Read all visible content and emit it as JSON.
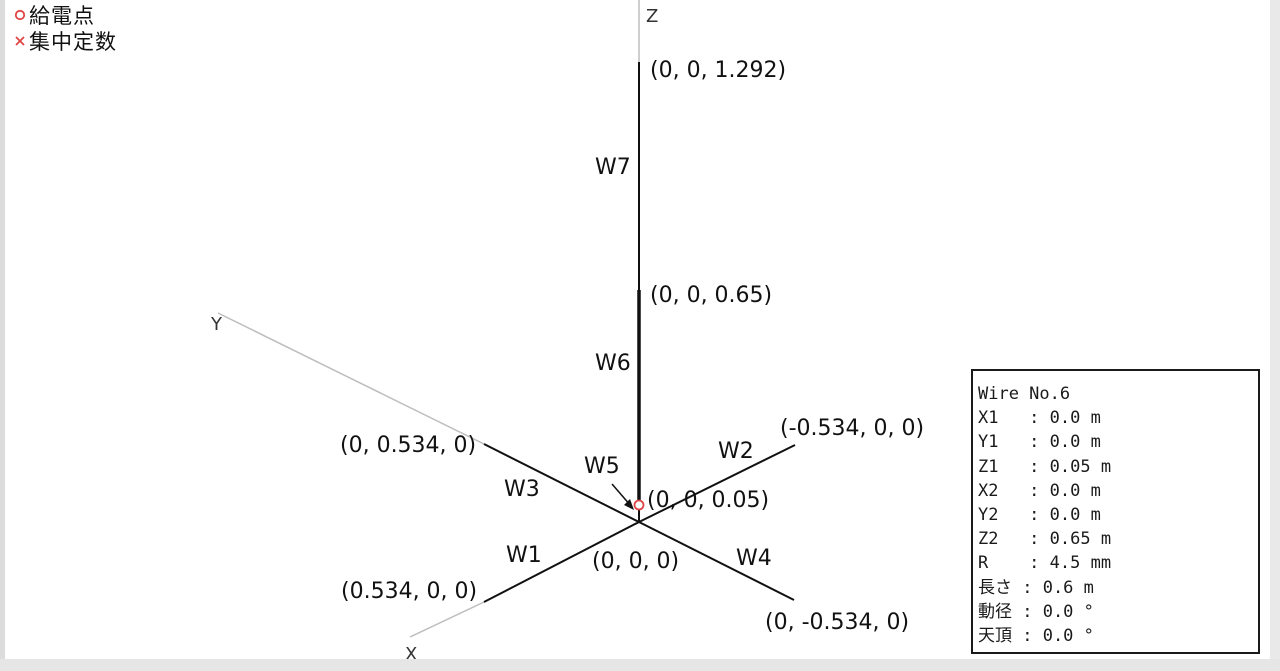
{
  "legend": {
    "feed_point_label": "給電点",
    "load_label": "集中定数"
  },
  "axes": {
    "z_label": "Z",
    "y_label": "Y",
    "x_label": "X"
  },
  "wires": {
    "w1": "W1",
    "w2": "W2",
    "w3": "W3",
    "w4": "W4",
    "w5": "W5",
    "w6": "W6",
    "w7": "W7"
  },
  "coordinates": {
    "top": "(0, 0, 1.292)",
    "mid": "(0, 0, 0.65)",
    "feed": "(0, 0, 0.05)",
    "origin": "(0, 0, 0)",
    "plus_y": "(0, 0.534, 0)",
    "minus_x": "(-0.534, 0, 0)",
    "plus_x": "(0.534, 0, 0)",
    "minus_y": "(0, -0.534, 0)"
  },
  "info_panel": {
    "title": "Wire No.6",
    "x1": "X1   : 0.0 m",
    "y1": "Y1   : 0.0 m",
    "z1": "Z1   : 0.05 m",
    "x2": "X2   : 0.0 m",
    "y2": "Y2   : 0.0 m",
    "z2": "Z2   : 0.65 m",
    "r": "R    : 4.5 mm",
    "length": "長さ : 0.6 m",
    "radius_angle": "動径 : 0.0 °",
    "zenith": "天頂 : 0.0 °"
  },
  "colors": {
    "wire": "#111111",
    "axis": "#bdbdbd",
    "feed_point": "#e04545",
    "load_marker": "#e04545"
  }
}
